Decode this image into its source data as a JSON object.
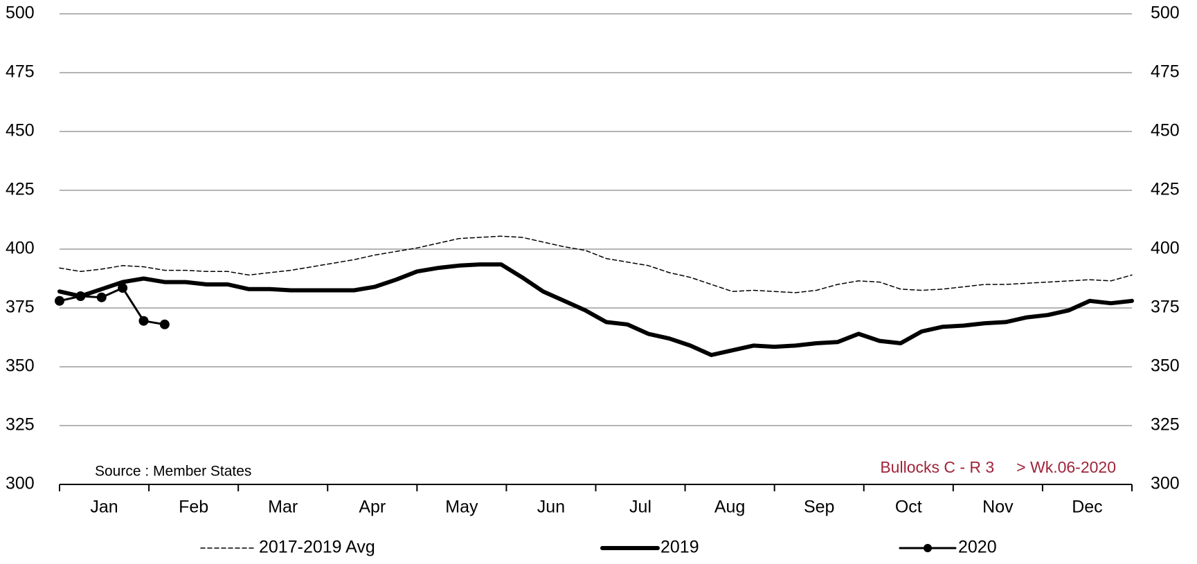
{
  "chart_data": {
    "type": "line",
    "x": [
      1,
      2,
      3,
      4,
      5,
      6,
      7,
      8,
      9,
      10,
      11,
      12,
      13,
      14,
      15,
      16,
      17,
      18,
      19,
      20,
      21,
      22,
      23,
      24,
      25,
      26,
      27,
      28,
      29,
      30,
      31,
      32,
      33,
      34,
      35,
      36,
      37,
      38,
      39,
      40,
      41,
      42,
      43,
      44,
      45,
      46,
      47,
      48,
      49,
      50,
      51,
      52
    ],
    "xlim": [
      1,
      52
    ],
    "months": [
      "Jan",
      "Feb",
      "Mar",
      "Apr",
      "May",
      "Jun",
      "Jul",
      "Aug",
      "Sep",
      "Oct",
      "Nov",
      "Dec"
    ],
    "ylim": [
      300,
      500
    ],
    "yticks": [
      300,
      325,
      350,
      375,
      400,
      425,
      450,
      475,
      500
    ],
    "y2lim": [
      300,
      500
    ],
    "y2ticks": [
      300,
      325,
      350,
      375,
      400,
      425,
      450,
      475,
      500
    ],
    "grid": true,
    "series": [
      {
        "name": "2017-2019 Avg",
        "color": "#000000",
        "style": "dashed",
        "values": [
          392,
          390.5,
          391.5,
          393,
          392.5,
          391,
          391,
          390.5,
          390.5,
          389,
          390,
          391,
          392.5,
          394,
          395.5,
          397.5,
          399,
          400.5,
          402.5,
          404.5,
          405,
          405.5,
          405,
          403,
          401,
          399.5,
          396,
          394.5,
          393,
          390,
          388,
          385,
          382,
          382.5,
          382,
          381.5,
          382.5,
          385,
          386.5,
          386,
          383,
          382.5,
          383,
          384,
          385,
          385,
          385.5,
          386,
          386.5,
          387,
          386.5,
          389
        ]
      },
      {
        "name": "2019",
        "color": "#000000",
        "style": "thick",
        "values": [
          382,
          380,
          383,
          386,
          387.5,
          386,
          386,
          385,
          385,
          383,
          383,
          382.5,
          382.5,
          382.5,
          382.5,
          384,
          387,
          390.5,
          392,
          393,
          393.5,
          393.5,
          388,
          382,
          378,
          374,
          369,
          368,
          364,
          362,
          359,
          355,
          357,
          359,
          358.5,
          359,
          360,
          360.5,
          364,
          361,
          360,
          365,
          367,
          367.5,
          368.5,
          369,
          371,
          372,
          374,
          378,
          377,
          378
        ]
      },
      {
        "name": "2020",
        "color": "#000000",
        "style": "marker",
        "values": [
          378,
          380,
          379.5,
          383.5,
          369.5,
          368,
          null,
          null,
          null,
          null,
          null,
          null,
          null,
          null,
          null,
          null,
          null,
          null,
          null,
          null,
          null,
          null,
          null,
          null,
          null,
          null,
          null,
          null,
          null,
          null,
          null,
          null,
          null,
          null,
          null,
          null,
          null,
          null,
          null,
          null,
          null,
          null,
          null,
          null,
          null,
          null,
          null,
          null,
          null,
          null,
          null,
          null
        ]
      }
    ],
    "source": "Source : Member  States",
    "annotation": "Bullocks C - R 3     > Wk.06-2020"
  }
}
